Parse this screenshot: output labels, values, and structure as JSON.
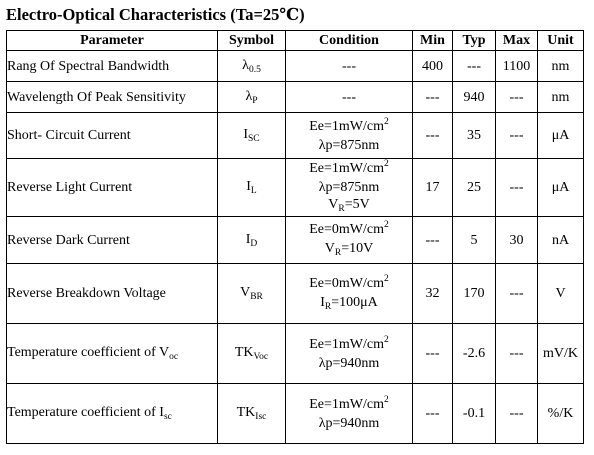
{
  "title": "Electro-Optical Characteristics (Ta=25℃)",
  "headers": {
    "parameter": "Parameter",
    "symbol": "Symbol",
    "condition": "Condition",
    "min": "Min",
    "typ": "Typ",
    "max": "Max",
    "unit": "Unit"
  },
  "rows": [
    {
      "parameter": "Rang Of Spectral Bandwidth",
      "symbol_main": "λ",
      "symbol_sub": "0.5",
      "condition_1": "---",
      "min": "400",
      "typ": "---",
      "max": "1100",
      "unit": "nm"
    },
    {
      "parameter": "Wavelength Of Peak Sensitivity",
      "symbol_main": "λ",
      "symbol_sub": "P",
      "condition_1": "---",
      "min": "---",
      "typ": "940",
      "max": "---",
      "unit": "nm"
    },
    {
      "parameter": "Short- Circuit Current",
      "symbol_main": "I",
      "symbol_sub": "SC",
      "condition_1": "Ee=1mW/cm",
      "condition_1_sup": "2",
      "condition_2": "λp=875nm",
      "min": "---",
      "typ": "35",
      "max": "---",
      "unit": "μA"
    },
    {
      "parameter": "Reverse Light Current",
      "symbol_main": "I",
      "symbol_sub": "L",
      "condition_1": "Ee=1mW/cm",
      "condition_1_sup": "2",
      "condition_2": "λp=875nm",
      "condition_3_main": "V",
      "condition_3_sub": "R",
      "condition_3_rest": "=5V",
      "min": "17",
      "typ": "25",
      "max": "---",
      "unit": "μA"
    },
    {
      "parameter": "Reverse Dark Current",
      "symbol_main": "I",
      "symbol_sub": "D",
      "condition_1": "Ee=0mW/cm",
      "condition_1_sup": "2",
      "condition_2_main": "V",
      "condition_2_sub": "R",
      "condition_2_rest": "=10V",
      "min": "---",
      "typ": "5",
      "max": "30",
      "unit": "nA"
    },
    {
      "parameter": "Reverse Breakdown Voltage",
      "symbol_main": "V",
      "symbol_sub": "BR",
      "condition_1": "Ee=0mW/cm",
      "condition_1_sup": "2",
      "condition_2_main": "I",
      "condition_2_sub": "R",
      "condition_2_rest": "=100μA",
      "min": "32",
      "typ": "170",
      "max": "---",
      "unit": "V"
    },
    {
      "parameter_main": "Temperature coefficient of V",
      "parameter_sub": "oc",
      "symbol_main": "TK",
      "symbol_sub": "Voc",
      "condition_1": "Ee=1mW/cm",
      "condition_1_sup": "2",
      "condition_2": "λp=940nm",
      "min": "---",
      "typ": "-2.6",
      "max": "---",
      "unit": "mV/K"
    },
    {
      "parameter_main": "Temperature coefficient of I",
      "parameter_sub": "sc",
      "symbol_main": "TK",
      "symbol_sub": "Isc",
      "condition_1": "Ee=1mW/cm",
      "condition_1_sup": "2",
      "condition_2": "λp=940nm",
      "min": "---",
      "typ": "-0.1",
      "max": "---",
      "unit": "%/K"
    }
  ]
}
